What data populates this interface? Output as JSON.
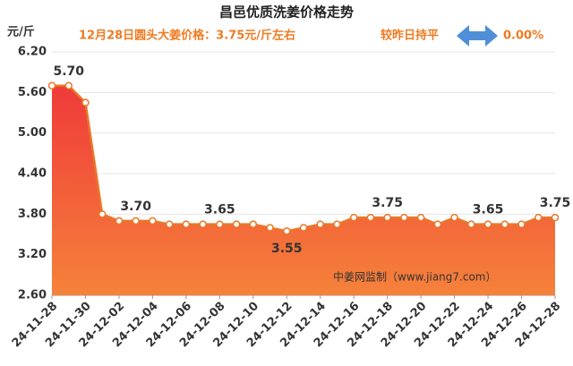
{
  "chart_data": {
    "type": "line",
    "title": "昌邑优质洗姜价格走势",
    "y_label": "元/斤",
    "subtitle": "12月28日圆头大姜价格：3.75元/斤左右",
    "change_label": "较昨日持平",
    "change_value": "0.00%",
    "watermark": "中姜网监制（www.jiang7.com）",
    "categories": [
      "24-11-28",
      null,
      "24-11-30",
      null,
      "24-12-02",
      null,
      "24-12-04",
      null,
      "24-12-06",
      null,
      "24-12-08",
      null,
      "24-12-10",
      null,
      "24-12-12",
      null,
      "24-12-14",
      null,
      "24-12-16",
      null,
      "24-12-18",
      null,
      "24-12-20",
      null,
      "24-12-22",
      null,
      "24-12-24",
      null,
      "24-12-26",
      null,
      "24-12-28"
    ],
    "values": [
      5.7,
      5.7,
      5.45,
      3.8,
      3.7,
      3.7,
      3.7,
      3.65,
      3.65,
      3.65,
      3.65,
      3.65,
      3.65,
      3.6,
      3.55,
      3.6,
      3.65,
      3.65,
      3.75,
      3.75,
      3.75,
      3.75,
      3.75,
      3.65,
      3.75,
      3.65,
      3.65,
      3.65,
      3.65,
      3.75,
      3.75
    ],
    "value_labels": [
      null,
      "5.70",
      null,
      null,
      null,
      "3.70",
      null,
      null,
      null,
      null,
      "3.65",
      null,
      null,
      null,
      "3.55",
      null,
      null,
      null,
      null,
      null,
      "3.75",
      null,
      null,
      null,
      null,
      null,
      "3.65",
      null,
      null,
      null,
      "3.75"
    ],
    "color": "#e8782a",
    "ylim": [
      2.6,
      6.2
    ],
    "yticks": [
      {
        "value": 2.6,
        "label": "2.60"
      },
      {
        "value": 3.2,
        "label": "3.20"
      },
      {
        "value": 3.8,
        "label": "3.80"
      },
      {
        "value": 4.4,
        "label": "4.40"
      },
      {
        "value": 5,
        "label": "5.00"
      },
      {
        "value": 5.6,
        "label": "5.60"
      },
      {
        "value": 6.2,
        "label": "6.20"
      }
    ],
    "grid": true
  }
}
